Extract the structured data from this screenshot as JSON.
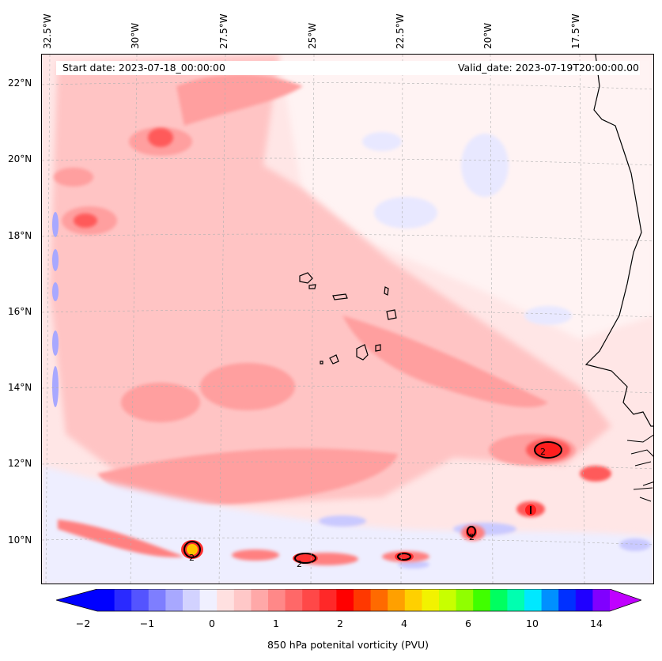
{
  "map": {
    "start_date": "Start date: 2023-07-18_00:00:00",
    "valid_date": "Valid_date: 2023-07-19T20:00:00.00",
    "lon_labels": [
      "32.5°W",
      "30°W",
      "27.5°W",
      "25°W",
      "22.5°W",
      "20°W",
      "17.5°W"
    ],
    "lat_labels": [
      "22°N",
      "20°N",
      "18°N",
      "16°N",
      "14°N",
      "12°N",
      "10°N"
    ],
    "contour_label": "2"
  },
  "colorbar": {
    "label": "850 hPa potenital vorticity (PVU)",
    "ticks": [
      "−2",
      "−1",
      "0",
      "1",
      "2",
      "4",
      "6",
      "10",
      "14"
    ],
    "colors": [
      "#0000ff",
      "#2a2aff",
      "#5454ff",
      "#7e7eff",
      "#a8a8ff",
      "#d2d2ff",
      "#f0f0ff",
      "#ffe0e0",
      "#ffc8c8",
      "#ffa8a8",
      "#ff8888",
      "#ff6868",
      "#ff4848",
      "#ff2828",
      "#ff0000",
      "#ff3800",
      "#ff6a00",
      "#ffa000",
      "#ffd000",
      "#f2f200",
      "#c8ff00",
      "#90ff00",
      "#40ff00",
      "#00ff60",
      "#00ffb0",
      "#00e8ff",
      "#0090ff",
      "#0030ff",
      "#2000ff",
      "#8000ff"
    ]
  },
  "colors": {
    "negative": "#d8d8ff",
    "light_pos": "#ffcccc",
    "mid_pos": "#ff9a9a",
    "strong_pos": "#ff5050",
    "peak": "#ff0000",
    "yellow": "#ffd000"
  }
}
